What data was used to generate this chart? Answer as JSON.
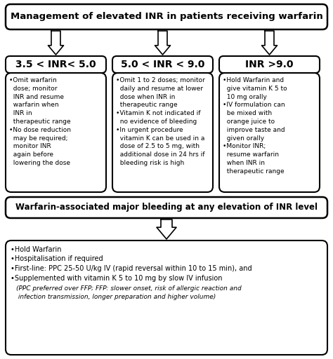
{
  "title": "Management of elevated INR in patients receiving warfarin",
  "box1_header": "3.5 < INR< 5.0",
  "box1_text": "•Omit warfarin\n  dose; monitor\n  INR and resume\n  warfarin when\n  INR in\n  therapeutic range\n•No dose reduction\n  may be required;\n  monitor INR\n  again before\n  lowering the dose",
  "box2_header": "5.0 < INR < 9.0",
  "box2_text": "•Omit 1 to 2 doses; monitor\n  daily and resume at lower\n  dose when INR in\n  therapeutic range\n•Vitamin K not indicated if\n  no evidence of bleeding\n•In urgent procedure\n  vitamin K can be used in a\n  dose of 2.5 to 5 mg, with\n  additional dose in 24 hrs if\n  bleeding risk is high",
  "box3_header": "INR >9.0",
  "box3_text": "•Hold Warfarin and\n  give vitamin K 5 to\n  10 mg orally\n•IV formulation can\n  be mixed with\n  orange juice to\n  improve taste and\n  given orally\n•Monitor INR;\n  resume warfarin\n  when INR in\n  therapeutic range",
  "mid_box": "Warfarin-associated major bleeding at any elevation of INR level",
  "bottom_line1": "•Hold Warfarin",
  "bottom_line2": "•Hospitalisation if required",
  "bottom_line3": "•First-line: PPC 25-50 U/kg IV (rapid reversal within 10 to 15 min), and",
  "bottom_line4": "•Supplemented with vitamin K 5 to 10 mg by slow IV infusion",
  "bottom_italic": "(PPC preferred over FFP; FFP: slower onset, risk of allergic reaction and\n infection transmission, longer preparation and higher volume)",
  "bg_color": "#ffffff",
  "text_color": "#000000"
}
